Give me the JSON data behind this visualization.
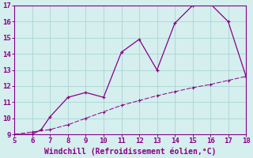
{
  "x_line1": [
    5,
    6,
    6.5,
    7,
    8,
    9,
    10,
    11,
    12,
    13,
    14,
    15,
    16,
    17,
    18
  ],
  "y_line1": [
    9.0,
    9.0,
    9.3,
    10.1,
    11.3,
    11.6,
    11.3,
    14.1,
    14.9,
    13.0,
    15.9,
    17.0,
    17.1,
    16.0,
    12.6
  ],
  "x_line2": [
    5,
    6,
    7,
    8,
    9,
    10,
    11,
    12,
    13,
    14,
    15,
    16,
    17,
    18
  ],
  "y_line2": [
    9.0,
    9.15,
    9.3,
    9.6,
    10.0,
    10.4,
    10.8,
    11.1,
    11.4,
    11.65,
    11.9,
    12.1,
    12.35,
    12.6
  ],
  "line_color": "#880088",
  "bg_color": "#d5eeee",
  "grid_color": "#aad4d4",
  "xlabel": "Windchill (Refroidissement éolien,°C)",
  "xlim": [
    5,
    18
  ],
  "ylim": [
    9,
    17
  ],
  "yticks": [
    9,
    10,
    11,
    12,
    13,
    14,
    15,
    16,
    17
  ],
  "xticks": [
    5,
    6,
    7,
    8,
    9,
    10,
    11,
    12,
    13,
    14,
    15,
    16,
    17,
    18
  ],
  "font_color": "#880088",
  "font_size": 6.5,
  "xlabel_fontsize": 7.0
}
